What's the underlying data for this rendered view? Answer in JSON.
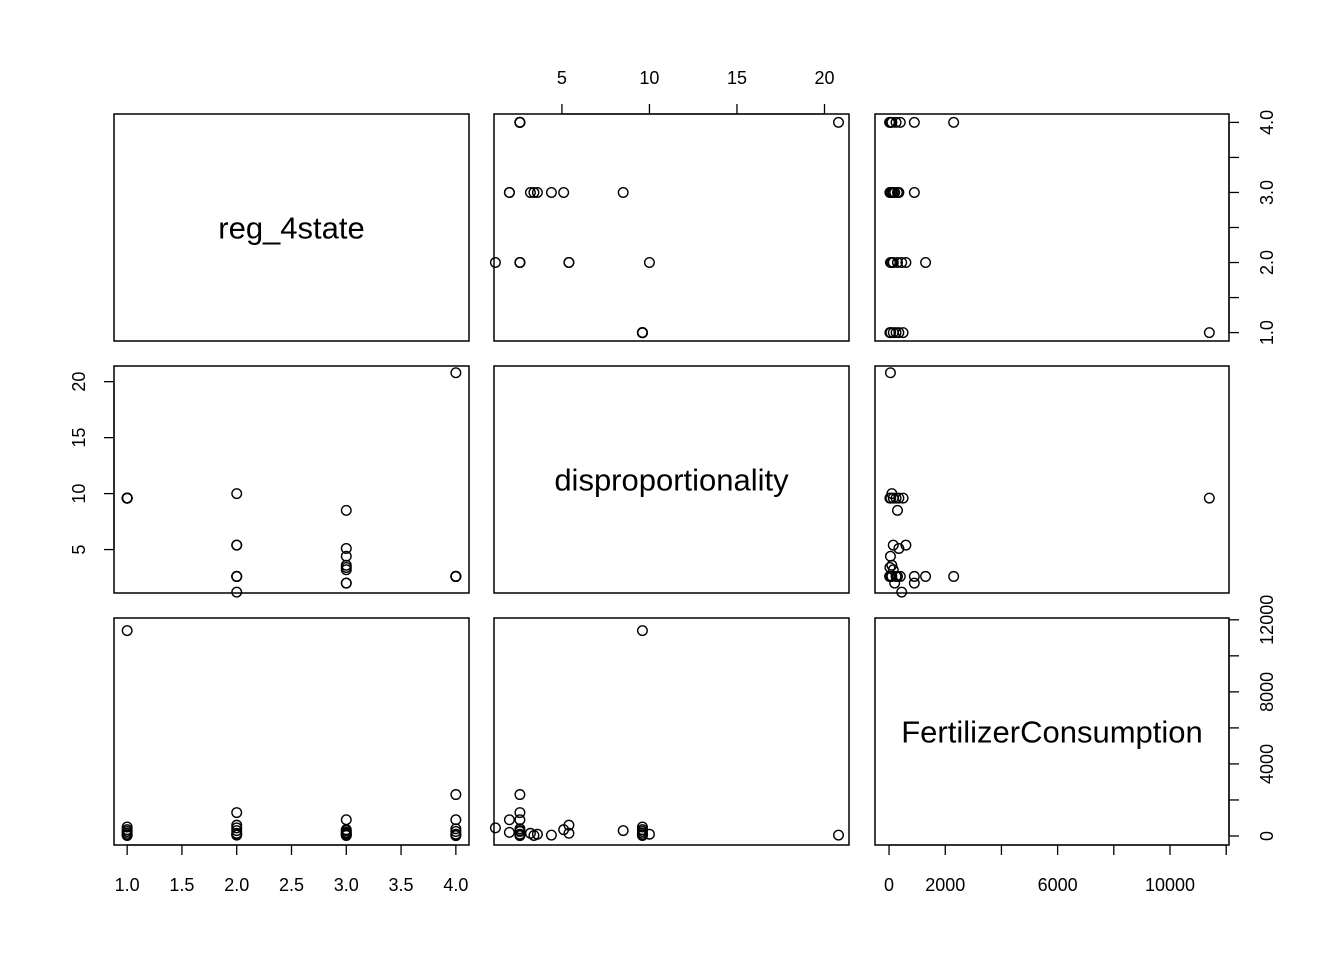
{
  "chart_data": {
    "type": "scatter",
    "variables": [
      "reg_4state",
      "disproportionality",
      "FertilizerConsumption"
    ],
    "axis_ranges": {
      "reg_4state": [
        0.88,
        4.12
      ],
      "disproportionality": [
        1.12,
        21.4
      ],
      "FertilizerConsumption": [
        -500,
        12100
      ]
    },
    "ticks": {
      "reg_4state": [
        {
          "v": 1.0,
          "label": "1.0"
        },
        {
          "v": 1.5,
          "label": "1.5"
        },
        {
          "v": 2.0,
          "label": "2.0"
        },
        {
          "v": 2.5,
          "label": "2.5"
        },
        {
          "v": 3.0,
          "label": "3.0"
        },
        {
          "v": 3.5,
          "label": "3.5"
        },
        {
          "v": 4.0,
          "label": "4.0"
        }
      ],
      "disproportionality": [
        {
          "v": 5,
          "label": "5"
        },
        {
          "v": 10,
          "label": "10"
        },
        {
          "v": 15,
          "label": "15"
        },
        {
          "v": 20,
          "label": "20"
        }
      ],
      "FertilizerConsumption_x": [
        {
          "v": 0,
          "label": "0"
        },
        {
          "v": 2000,
          "label": "2000"
        },
        {
          "v": 4000,
          "label": ""
        },
        {
          "v": 6000,
          "label": "6000"
        },
        {
          "v": 8000,
          "label": ""
        },
        {
          "v": 10000,
          "label": "10000"
        },
        {
          "v": 12000,
          "label": ""
        }
      ],
      "FertilizerConsumption_y": [
        {
          "v": 0,
          "label": "0"
        },
        {
          "v": 2000,
          "label": ""
        },
        {
          "v": 4000,
          "label": "4000"
        },
        {
          "v": 6000,
          "label": ""
        },
        {
          "v": 8000,
          "label": "8000"
        },
        {
          "v": 10000,
          "label": ""
        },
        {
          "v": 12000,
          "label": "12000"
        }
      ],
      "reg_4state_y": [
        {
          "v": 1.0,
          "label": "1.0"
        },
        {
          "v": 1.5,
          "label": ""
        },
        {
          "v": 2.0,
          "label": "2.0"
        },
        {
          "v": 2.5,
          "label": ""
        },
        {
          "v": 3.0,
          "label": "3.0"
        },
        {
          "v": 3.5,
          "label": ""
        },
        {
          "v": 4.0,
          "label": "4.0"
        }
      ],
      "disproportionality_y": [
        {
          "v": 5,
          "label": "5"
        },
        {
          "v": 10,
          "label": "10"
        },
        {
          "v": 15,
          "label": "15"
        },
        {
          "v": 20,
          "label": "20"
        }
      ]
    },
    "observations": [
      {
        "reg_4state": 1,
        "disproportionality": 9.6,
        "FertilizerConsumption": 11400
      },
      {
        "reg_4state": 1,
        "disproportionality": 9.6,
        "FertilizerConsumption": 350
      },
      {
        "reg_4state": 1,
        "disproportionality": 9.6,
        "FertilizerConsumption": 150
      },
      {
        "reg_4state": 1,
        "disproportionality": 9.6,
        "FertilizerConsumption": 60
      },
      {
        "reg_4state": 1,
        "disproportionality": 9.6,
        "FertilizerConsumption": 30
      },
      {
        "reg_4state": 1,
        "disproportionality": 9.6,
        "FertilizerConsumption": 500
      },
      {
        "reg_4state": 1,
        "disproportionality": 9.6,
        "FertilizerConsumption": 250
      },
      {
        "reg_4state": 2,
        "disproportionality": 10.0,
        "FertilizerConsumption": 100
      },
      {
        "reg_4state": 2,
        "disproportionality": 5.4,
        "FertilizerConsumption": 150
      },
      {
        "reg_4state": 2,
        "disproportionality": 2.6,
        "FertilizerConsumption": 300
      },
      {
        "reg_4state": 2,
        "disproportionality": 1.2,
        "FertilizerConsumption": 450
      },
      {
        "reg_4state": 2,
        "disproportionality": 2.6,
        "FertilizerConsumption": 1300
      },
      {
        "reg_4state": 2,
        "disproportionality": 5.4,
        "FertilizerConsumption": 600
      },
      {
        "reg_4state": 2,
        "disproportionality": 2.6,
        "FertilizerConsumption": 50
      },
      {
        "reg_4state": 3,
        "disproportionality": 8.5,
        "FertilizerConsumption": 300
      },
      {
        "reg_4state": 3,
        "disproportionality": 5.1,
        "FertilizerConsumption": 350
      },
      {
        "reg_4state": 3,
        "disproportionality": 4.4,
        "FertilizerConsumption": 50
      },
      {
        "reg_4state": 3,
        "disproportionality": 3.6,
        "FertilizerConsumption": 100
      },
      {
        "reg_4state": 3,
        "disproportionality": 3.2,
        "FertilizerConsumption": 150
      },
      {
        "reg_4state": 3,
        "disproportionality": 2.0,
        "FertilizerConsumption": 200
      },
      {
        "reg_4state": 3,
        "disproportionality": 2.0,
        "FertilizerConsumption": 900
      },
      {
        "reg_4state": 3,
        "disproportionality": 3.4,
        "FertilizerConsumption": 30
      },
      {
        "reg_4state": 4,
        "disproportionality": 20.8,
        "FertilizerConsumption": 50
      },
      {
        "reg_4state": 4,
        "disproportionality": 2.6,
        "FertilizerConsumption": 250
      },
      {
        "reg_4state": 4,
        "disproportionality": 2.6,
        "FertilizerConsumption": 2300
      },
      {
        "reg_4state": 4,
        "disproportionality": 2.6,
        "FertilizerConsumption": 900
      },
      {
        "reg_4state": 4,
        "disproportionality": 2.6,
        "FertilizerConsumption": 400
      },
      {
        "reg_4state": 4,
        "disproportionality": 2.6,
        "FertilizerConsumption": 100
      },
      {
        "reg_4state": 4,
        "disproportionality": 2.6,
        "FertilizerConsumption": 20
      }
    ]
  }
}
